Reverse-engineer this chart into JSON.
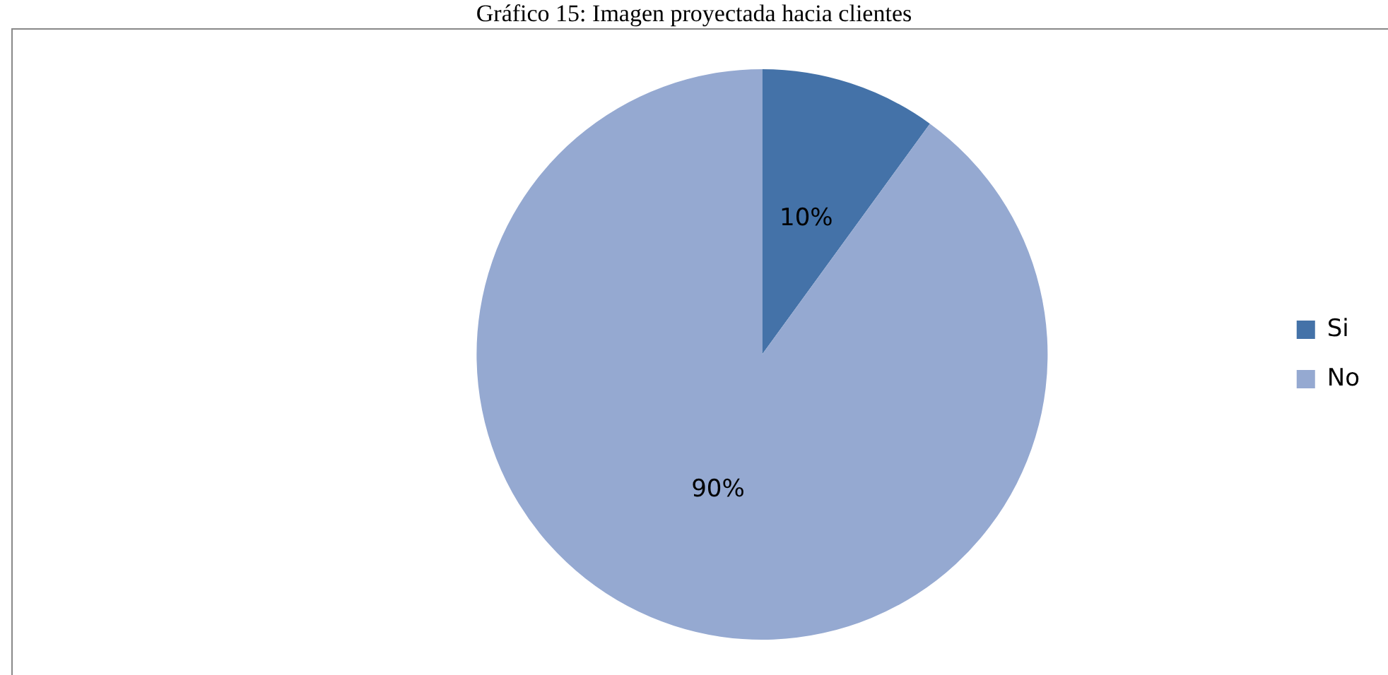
{
  "chart_data": {
    "type": "pie",
    "title": "Gráfico 15: Imagen proyectada hacia clientes",
    "categories": [
      "Si",
      "No"
    ],
    "values": [
      10,
      90
    ],
    "colors": [
      "#4472a8",
      "#95a9d1"
    ],
    "value_labels": [
      "10%",
      "90%"
    ],
    "legend": "right"
  }
}
